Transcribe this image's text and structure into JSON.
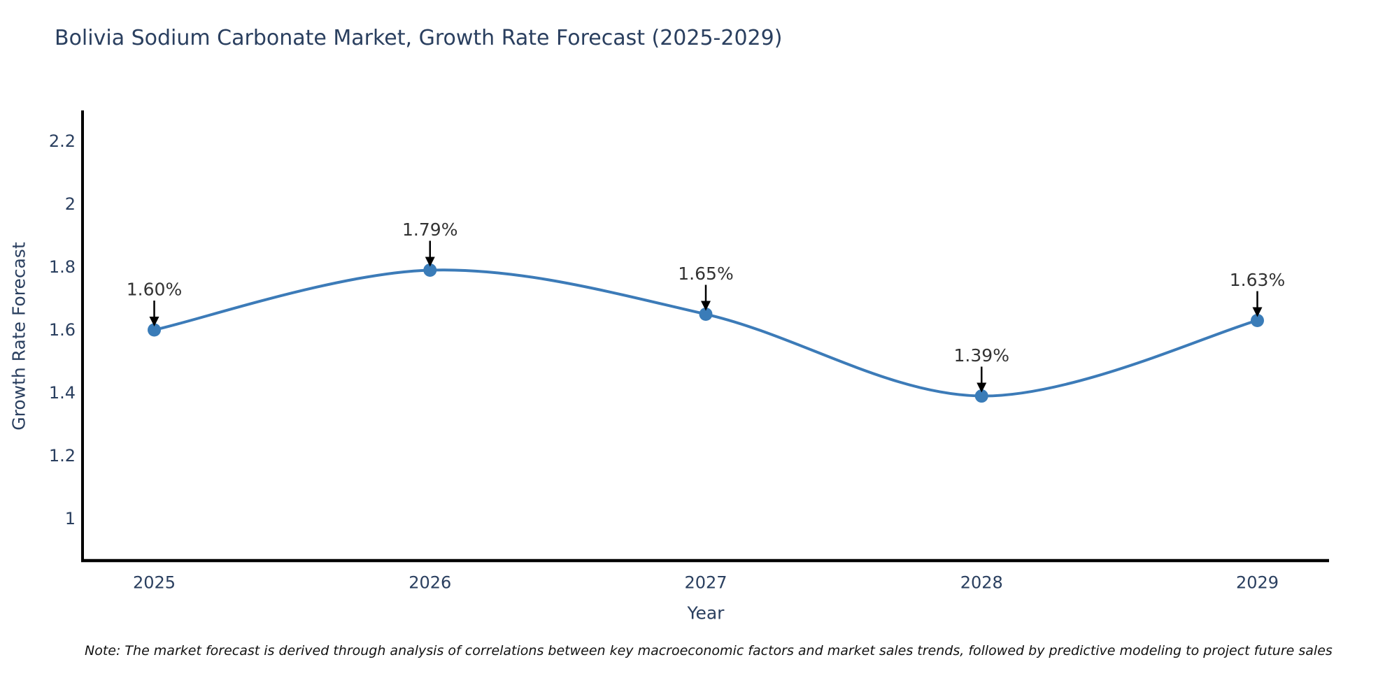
{
  "note": {
    "text": "Note: The market forecast is derived through analysis of correlations between key macroeconomic factors and market sales trends, followed by predictive modeling to project future sales"
  },
  "chart_data": {
    "type": "line",
    "title": "Bolivia Sodium Carbonate Market, Growth Rate Forecast (2025-2029)",
    "xlabel": "Year",
    "ylabel": "Growth Rate Forecast",
    "x": [
      2025,
      2026,
      2027,
      2028,
      2029
    ],
    "series": [
      {
        "name": "Growth Rate Forecast",
        "values": [
          1.6,
          1.79,
          1.65,
          1.39,
          1.63
        ]
      }
    ],
    "point_labels": [
      "1.60%",
      "1.79%",
      "1.65%",
      "1.39%",
      "1.63%"
    ],
    "xticks": [
      2025,
      2026,
      2027,
      2028,
      2029
    ],
    "yticks": [
      1,
      1.2,
      1.4,
      1.6,
      1.8,
      2,
      2.2
    ],
    "xlim": [
      2024.74,
      2029.26
    ],
    "ylim": [
      0.867,
      2.293
    ],
    "grid": false,
    "legend": false,
    "line_shape": "spline",
    "annotation_arrows": true,
    "colors": {
      "line": "#3c7bb8",
      "marker": "#3a7cb8",
      "axis_line": "#000000",
      "axis_text": "#2a3f5f",
      "annotation_text": "#333333",
      "arrow": "#000000",
      "background": "#ffffff"
    }
  }
}
